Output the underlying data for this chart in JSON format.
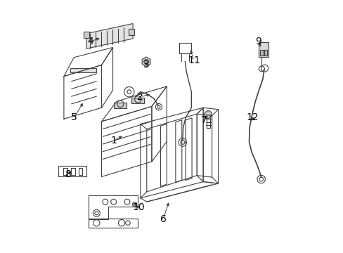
{
  "background_color": "#ffffff",
  "line_color": "#404040",
  "label_color": "#000000",
  "fig_width": 4.89,
  "fig_height": 3.6,
  "dpi": 100,
  "font_size": 10,
  "leaders": {
    "1": {
      "label": [
        0.27,
        0.445
      ],
      "arrow": [
        0.31,
        0.465
      ]
    },
    "2": {
      "label": [
        0.375,
        0.618
      ],
      "arrow": [
        0.42,
        0.63
      ]
    },
    "3": {
      "label": [
        0.4,
        0.745
      ],
      "arrow": [
        0.395,
        0.758
      ]
    },
    "4": {
      "label": [
        0.175,
        0.838
      ],
      "arrow": [
        0.22,
        0.855
      ]
    },
    "5": {
      "label": [
        0.11,
        0.535
      ],
      "arrow": [
        0.15,
        0.6
      ]
    },
    "6": {
      "label": [
        0.465,
        0.13
      ],
      "arrow": [
        0.49,
        0.205
      ]
    },
    "7": {
      "label": [
        0.628,
        0.525
      ],
      "arrow": [
        0.645,
        0.548
      ]
    },
    "8": {
      "label": [
        0.088,
        0.31
      ],
      "arrow": [
        0.105,
        0.328
      ]
    },
    "9": {
      "label": [
        0.845,
        0.838
      ],
      "arrow": [
        0.858,
        0.81
      ]
    },
    "10": {
      "label": [
        0.368,
        0.178
      ],
      "arrow": [
        0.35,
        0.188
      ]
    },
    "11": {
      "label": [
        0.588,
        0.762
      ],
      "arrow": [
        0.572,
        0.812
      ]
    },
    "12": {
      "label": [
        0.822,
        0.535
      ],
      "arrow": [
        0.818,
        0.515
      ]
    }
  }
}
